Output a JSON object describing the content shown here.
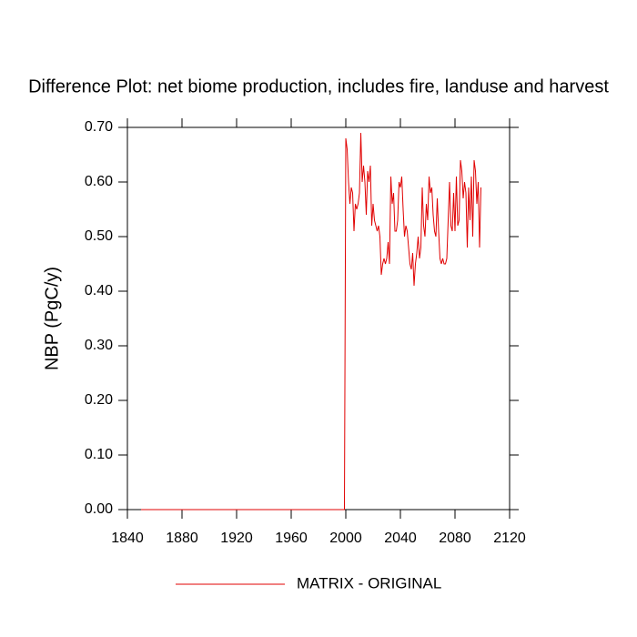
{
  "chart_data": {
    "type": "line",
    "title": "Difference Plot: net biome production, includes fire, landuse and harvest",
    "y_label": "NBP  (PgC/y)",
    "x": [
      1850,
      1999,
      2000,
      2001,
      2002,
      2003,
      2004,
      2005,
      2006,
      2007,
      2008,
      2009,
      2010,
      2011,
      2012,
      2013,
      2014,
      2015,
      2016,
      2017,
      2018,
      2019,
      2020,
      2021,
      2022,
      2023,
      2024,
      2025,
      2026,
      2027,
      2028,
      2029,
      2030,
      2031,
      2032,
      2033,
      2034,
      2035,
      2036,
      2037,
      2038,
      2039,
      2040,
      2041,
      2042,
      2043,
      2044,
      2045,
      2046,
      2047,
      2048,
      2049,
      2050,
      2051,
      2052,
      2053,
      2054,
      2055,
      2056,
      2057,
      2058,
      2059,
      2060,
      2061,
      2062,
      2063,
      2064,
      2065,
      2066,
      2067,
      2068,
      2069,
      2070,
      2071,
      2072,
      2073,
      2074,
      2075,
      2076,
      2077,
      2078,
      2079,
      2080,
      2081,
      2082,
      2083,
      2084,
      2085,
      2086,
      2087,
      2088,
      2089,
      2090,
      2091,
      2092,
      2093,
      2094,
      2095,
      2096,
      2097,
      2098,
      2099
    ],
    "series": [
      {
        "name": "MATRIX - ORIGINAL",
        "color": "#e00000",
        "values": [
          0,
          0,
          0.68,
          0.66,
          0.6,
          0.56,
          0.59,
          0.58,
          0.51,
          0.56,
          0.55,
          0.56,
          0.58,
          0.69,
          0.6,
          0.63,
          0.6,
          0.54,
          0.62,
          0.6,
          0.63,
          0.52,
          0.56,
          0.53,
          0.52,
          0.51,
          0.52,
          0.5,
          0.43,
          0.45,
          0.46,
          0.45,
          0.46,
          0.49,
          0.45,
          0.61,
          0.56,
          0.58,
          0.51,
          0.51,
          0.53,
          0.6,
          0.59,
          0.61,
          0.55,
          0.5,
          0.52,
          0.51,
          0.48,
          0.45,
          0.44,
          0.47,
          0.41,
          0.45,
          0.47,
          0.5,
          0.46,
          0.48,
          0.59,
          0.52,
          0.5,
          0.56,
          0.53,
          0.61,
          0.58,
          0.59,
          0.54,
          0.51,
          0.5,
          0.57,
          0.51,
          0.46,
          0.45,
          0.46,
          0.45,
          0.45,
          0.46,
          0.53,
          0.6,
          0.52,
          0.51,
          0.58,
          0.51,
          0.61,
          0.52,
          0.53,
          0.64,
          0.62,
          0.57,
          0.6,
          0.58,
          0.48,
          0.59,
          0.53,
          0.61,
          0.5,
          0.64,
          0.62,
          0.56,
          0.6,
          0.48,
          0.59
        ]
      }
    ],
    "xlim": [
      1840,
      2120
    ],
    "xticks": [
      1840,
      1880,
      1920,
      1960,
      2000,
      2040,
      2080,
      2120
    ],
    "ylim": [
      0,
      0.7
    ],
    "yticks": [
      {
        "value": 0,
        "label": "0.00"
      },
      {
        "value": 0.1,
        "label": "0.10"
      },
      {
        "value": 0.2,
        "label": "0.20"
      },
      {
        "value": 0.3,
        "label": "0.30"
      },
      {
        "value": 0.4,
        "label": "0.40"
      },
      {
        "value": 0.5,
        "label": "0.50"
      },
      {
        "value": 0.6,
        "label": "0.60"
      },
      {
        "value": 0.7,
        "label": "0.70"
      }
    ],
    "grid": false,
    "legend": "bottom"
  }
}
